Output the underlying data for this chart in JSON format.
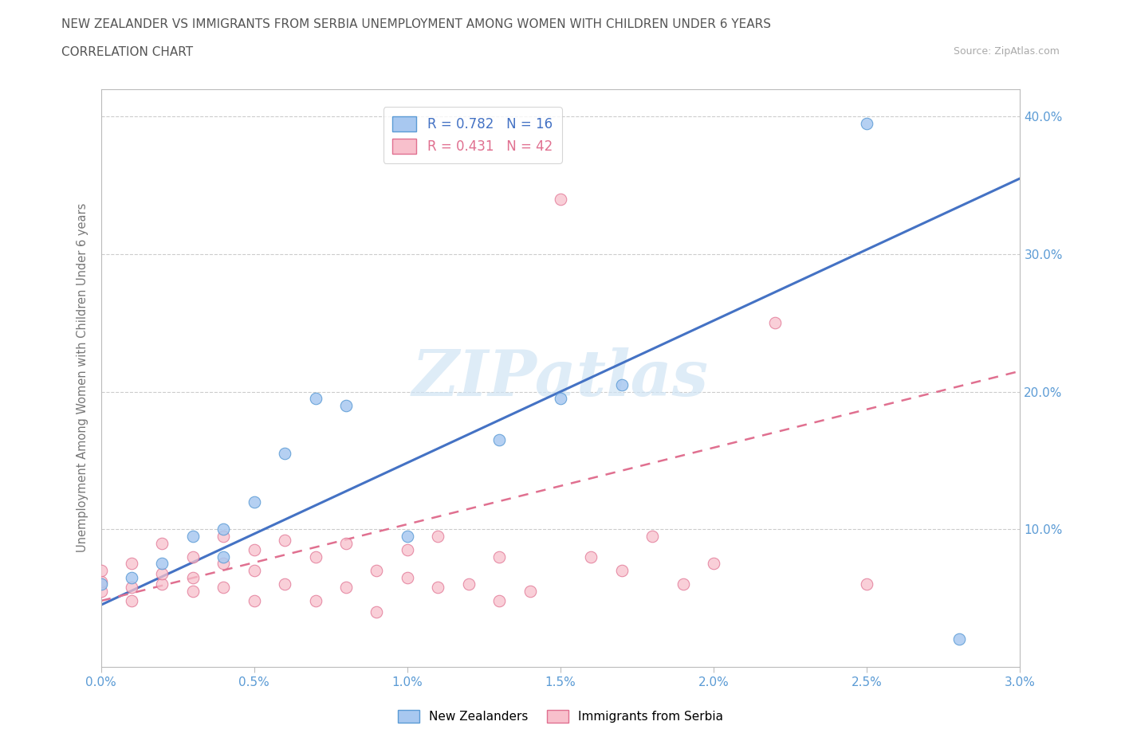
{
  "title_line1": "NEW ZEALANDER VS IMMIGRANTS FROM SERBIA UNEMPLOYMENT AMONG WOMEN WITH CHILDREN UNDER 6 YEARS",
  "title_line2": "CORRELATION CHART",
  "source": "Source: ZipAtlas.com",
  "ylabel_label": "Unemployment Among Women with Children Under 6 years",
  "series_nz": {
    "name": "New Zealanders",
    "R": 0.782,
    "N": 16,
    "scatter_face": "#a8c8f0",
    "scatter_edge": "#5b9bd5",
    "line_color": "#4472c4",
    "line_x": [
      0.0,
      0.03
    ],
    "line_y": [
      0.045,
      0.355
    ]
  },
  "series_serbia": {
    "name": "Immigrants from Serbia",
    "R": 0.431,
    "N": 42,
    "scatter_face": "#f8c0cc",
    "scatter_edge": "#e07090",
    "line_color": "#e07090",
    "line_x": [
      0.0,
      0.03
    ],
    "line_y": [
      0.048,
      0.215
    ],
    "line_style": "--"
  },
  "nz_x": [
    0.0,
    0.001,
    0.002,
    0.003,
    0.004,
    0.004,
    0.005,
    0.006,
    0.007,
    0.008,
    0.01,
    0.013,
    0.015,
    0.017,
    0.025,
    0.028
  ],
  "nz_y": [
    0.06,
    0.065,
    0.075,
    0.095,
    0.08,
    0.1,
    0.12,
    0.155,
    0.195,
    0.19,
    0.095,
    0.165,
    0.195,
    0.205,
    0.395,
    0.02
  ],
  "serbia_x": [
    0.0,
    0.0,
    0.0,
    0.001,
    0.001,
    0.001,
    0.002,
    0.002,
    0.002,
    0.003,
    0.003,
    0.003,
    0.004,
    0.004,
    0.004,
    0.005,
    0.005,
    0.005,
    0.006,
    0.006,
    0.007,
    0.007,
    0.008,
    0.008,
    0.009,
    0.009,
    0.01,
    0.01,
    0.011,
    0.011,
    0.012,
    0.013,
    0.013,
    0.014,
    0.015,
    0.016,
    0.017,
    0.018,
    0.019,
    0.02,
    0.022,
    0.025
  ],
  "serbia_y": [
    0.055,
    0.062,
    0.07,
    0.048,
    0.058,
    0.075,
    0.06,
    0.068,
    0.09,
    0.055,
    0.065,
    0.08,
    0.058,
    0.075,
    0.095,
    0.048,
    0.07,
    0.085,
    0.06,
    0.092,
    0.048,
    0.08,
    0.058,
    0.09,
    0.04,
    0.07,
    0.065,
    0.085,
    0.058,
    0.095,
    0.06,
    0.048,
    0.08,
    0.055,
    0.34,
    0.08,
    0.07,
    0.095,
    0.06,
    0.075,
    0.25,
    0.06
  ],
  "background_color": "#ffffff",
  "grid_color": "#cccccc",
  "axis_color": "#5b9bd5",
  "title_color": "#555555",
  "source_color": "#aaaaaa",
  "watermark_color": "#d0e4f4",
  "xlim": [
    0.0,
    0.03
  ],
  "ylim": [
    0.0,
    0.42
  ],
  "x_tick_vals": [
    0.0,
    0.005,
    0.01,
    0.015,
    0.02,
    0.025,
    0.03
  ],
  "x_tick_labels": [
    "0.0%",
    "0.5%",
    "1.0%",
    "1.5%",
    "2.0%",
    "2.5%",
    "3.0%"
  ],
  "y_tick_vals": [
    0.0,
    0.1,
    0.2,
    0.3,
    0.4
  ],
  "y_tick_labels": [
    "",
    "10.0%",
    "20.0%",
    "30.0%",
    "40.0%"
  ]
}
